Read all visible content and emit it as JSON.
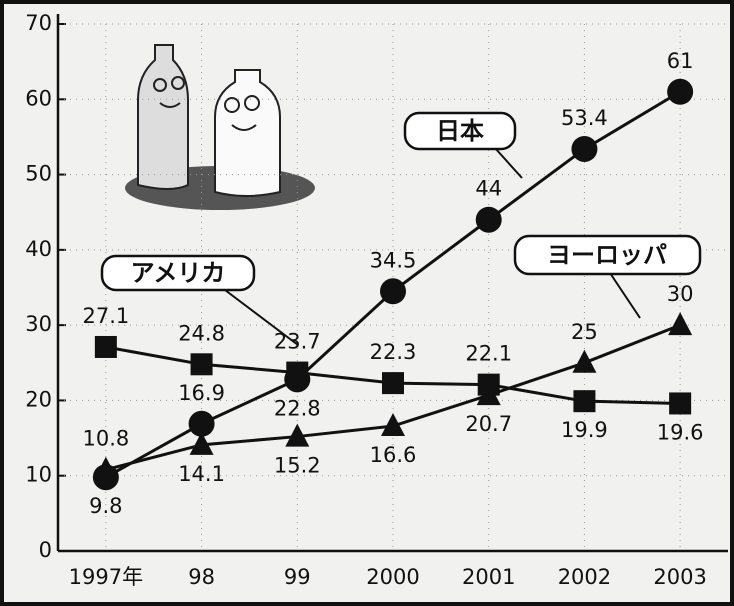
{
  "chart_data": {
    "type": "line",
    "categories": [
      "1997年",
      "98",
      "99",
      "2000",
      "2001",
      "2002",
      "2003"
    ],
    "series": [
      {
        "name": "日本",
        "color": "#111111",
        "marker": "circle",
        "values": [
          9.8,
          16.9,
          22.8,
          34.5,
          44,
          53.4,
          61
        ]
      },
      {
        "name": "アメリカ",
        "color": "#111111",
        "marker": "square",
        "values": [
          27.1,
          24.8,
          23.7,
          22.3,
          22.1,
          19.9,
          19.6
        ]
      },
      {
        "name": "ヨーロッパ",
        "color": "#111111",
        "marker": "triangle",
        "values": [
          10.8,
          14.1,
          15.2,
          16.6,
          20.7,
          25,
          30
        ]
      }
    ],
    "ylim": [
      0,
      70
    ],
    "yticks": [
      0,
      10,
      20,
      30,
      40,
      50,
      60,
      70
    ],
    "grid": true
  }
}
